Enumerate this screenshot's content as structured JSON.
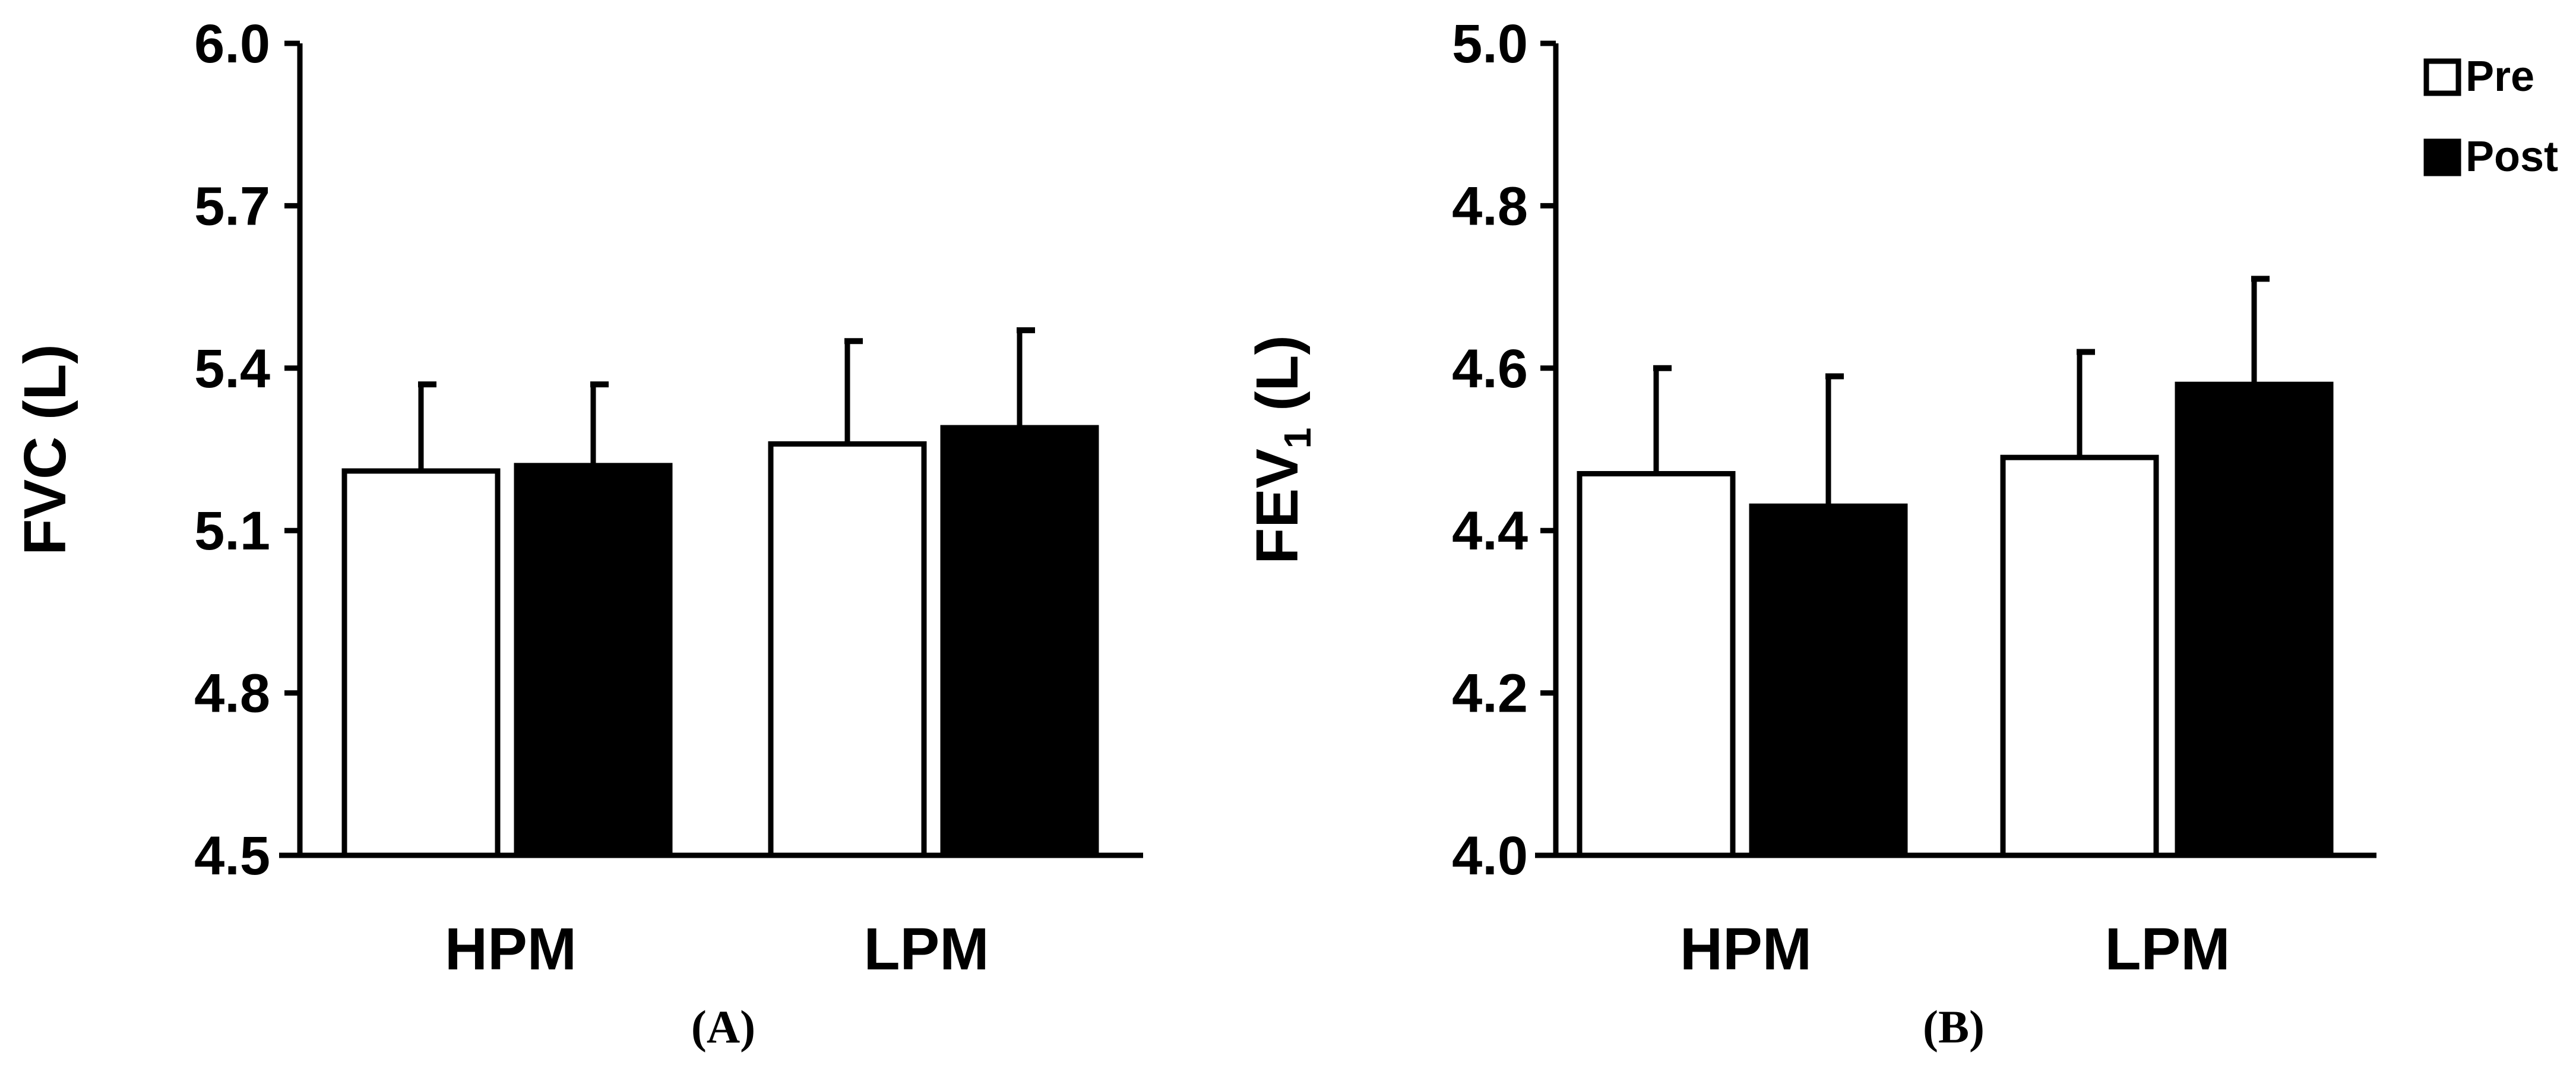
{
  "chart_data": [
    {
      "type": "bar",
      "panel_label": "(A)",
      "categories": [
        "HPM",
        "LPM"
      ],
      "ylabel": "FVC (L)",
      "ylim": [
        4.5,
        6.0
      ],
      "yticks": [
        "4.5",
        "4.8",
        "5.1",
        "5.4",
        "5.7",
        "6.0"
      ],
      "series": [
        {
          "name": "Pre",
          "values": [
            5.21,
            5.26
          ],
          "errors": [
            0.16,
            0.19
          ],
          "fill": "#ffffff"
        },
        {
          "name": "Post",
          "values": [
            5.22,
            5.29
          ],
          "errors": [
            0.15,
            0.18
          ],
          "fill": "#000000"
        }
      ]
    },
    {
      "type": "bar",
      "panel_label": "(B)",
      "categories": [
        "HPM",
        "LPM"
      ],
      "ylabel_main": "FEV",
      "ylabel_sub": "1",
      "ylabel_unit": " (L)",
      "ylim": [
        4.0,
        5.0
      ],
      "yticks": [
        "4.0",
        "4.2",
        "4.4",
        "4.6",
        "4.8",
        "5.0"
      ],
      "series": [
        {
          "name": "Pre",
          "values": [
            4.47,
            4.49
          ],
          "errors": [
            0.13,
            0.13
          ],
          "fill": "#ffffff"
        },
        {
          "name": "Post",
          "values": [
            4.43,
            4.58
          ],
          "errors": [
            0.16,
            0.13
          ],
          "fill": "#000000"
        }
      ]
    }
  ],
  "legend": {
    "position": "top-right",
    "items": [
      {
        "label": "Pre",
        "fill": "#ffffff"
      },
      {
        "label": "Post",
        "fill": "#000000"
      }
    ]
  }
}
